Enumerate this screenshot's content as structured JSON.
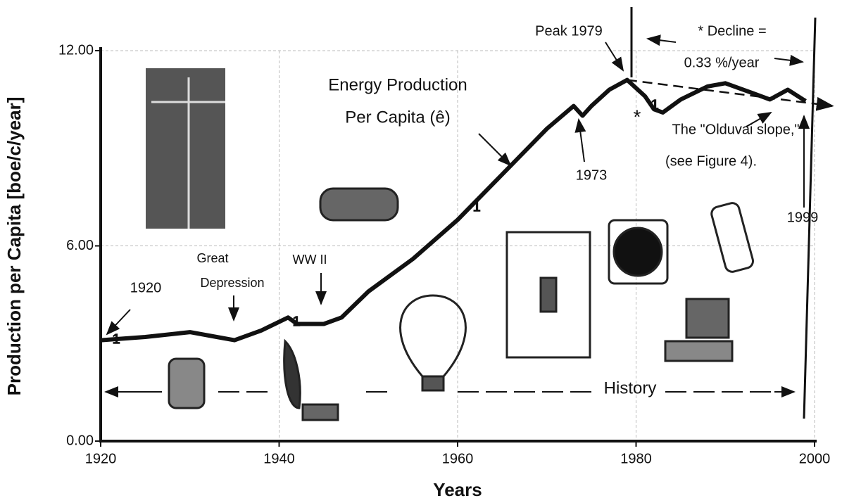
{
  "chart_data": {
    "type": "line",
    "xlabel": "Years",
    "ylabel": "Production per Capita [boe/c/year]",
    "x": [
      1920,
      1925,
      1930,
      1933,
      1935,
      1938,
      1941,
      1942,
      1945,
      1947,
      1950,
      1955,
      1960,
      1965,
      1970,
      1973,
      1974,
      1975,
      1977,
      1979,
      1981,
      1982,
      1983,
      1985,
      1988,
      1990,
      1993,
      1995,
      1997,
      1999
    ],
    "values": [
      3.1,
      3.2,
      3.35,
      3.2,
      3.1,
      3.4,
      3.8,
      3.6,
      3.6,
      3.8,
      4.6,
      5.6,
      6.8,
      8.2,
      9.6,
      10.3,
      10.0,
      10.3,
      10.8,
      11.1,
      10.6,
      10.2,
      10.1,
      10.5,
      10.9,
      11.0,
      10.7,
      10.5,
      10.8,
      10.45
    ],
    "color": "#111111",
    "trend": {
      "x": [
        1979,
        2002
      ],
      "values": [
        11.1,
        10.3
      ]
    },
    "xlim": [
      1920,
      2000
    ],
    "ylim": [
      0,
      12
    ],
    "xticks": [
      1920,
      1940,
      1960,
      1980,
      2000
    ],
    "yticks": [
      {
        "value": 0,
        "label": "0.00"
      },
      {
        "value": 6,
        "label": "6.00"
      },
      {
        "value": 12,
        "label": "12.00"
      }
    ],
    "grid": true,
    "line_marker": "1",
    "annotations": [
      "Energy Production",
      "Per Capita (ê)",
      "Peak 1979",
      "1973",
      "1920",
      "Great",
      "Depression",
      "WW II",
      "* Decline =",
      "0.33 %/year",
      "*",
      "The \"Olduvai slope,\"",
      "(see Figure 4).",
      "1999",
      "History"
    ]
  }
}
